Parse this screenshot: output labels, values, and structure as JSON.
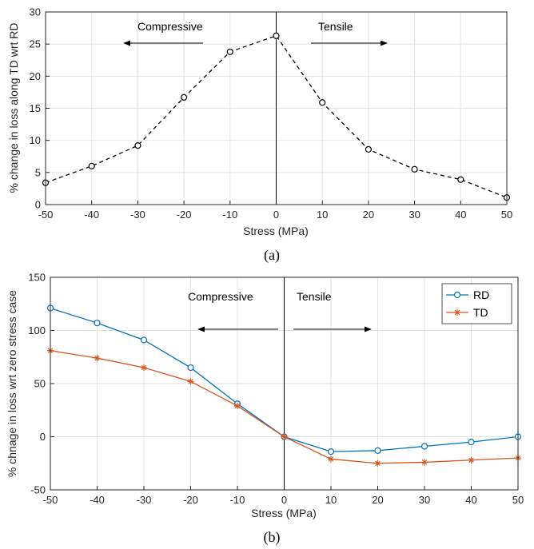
{
  "chart_data": [
    {
      "type": "line",
      "caption": "(a)",
      "xlabel": "Stress (MPa)",
      "ylabel": "% change in loss along TD wrt RD",
      "xlim": [
        -50,
        50
      ],
      "ylim": [
        0,
        30
      ],
      "xticks": [
        -50,
        -40,
        -30,
        -20,
        -10,
        0,
        10,
        20,
        30,
        40,
        50
      ],
      "yticks": [
        0,
        5,
        10,
        15,
        20,
        25,
        30
      ],
      "grid": true,
      "x": [
        -50,
        -40,
        -30,
        -20,
        -10,
        0,
        10,
        20,
        30,
        40,
        50
      ],
      "series": [
        {
          "values": [
            3.4,
            6.0,
            9.2,
            16.7,
            23.8,
            26.3,
            15.9,
            8.6,
            5.5,
            3.9,
            1.1
          ],
          "color": "#000000",
          "style": "dashed",
          "marker": "circle"
        }
      ],
      "annotations": {
        "left": "Compressive",
        "right": "Tensile"
      }
    },
    {
      "type": "line",
      "caption": "(b)",
      "xlabel": "Stress (MPa)",
      "ylabel": "% chnage in loss wrt zero stress case",
      "xlim": [
        -50,
        50
      ],
      "ylim": [
        -50,
        150
      ],
      "xticks": [
        -50,
        -40,
        -30,
        -20,
        -10,
        0,
        10,
        20,
        30,
        40,
        50
      ],
      "yticks": [
        -50,
        0,
        50,
        100,
        150
      ],
      "grid": true,
      "legend": "top-right",
      "x": [
        -50,
        -40,
        -30,
        -20,
        -10,
        0,
        10,
        20,
        30,
        40,
        50
      ],
      "series": [
        {
          "name": "RD",
          "values": [
            121,
            107,
            91,
            65,
            31,
            0,
            -14,
            -13,
            -9,
            -5,
            0
          ],
          "color": "#0072BD",
          "marker": "circle"
        },
        {
          "name": "TD",
          "values": [
            81,
            74,
            65,
            52,
            29,
            0,
            -21,
            -25,
            -24,
            -22,
            -20
          ],
          "color": "#D95319",
          "marker": "star"
        }
      ],
      "annotations": {
        "left": "Compressive",
        "right": "Tensile"
      }
    }
  ]
}
